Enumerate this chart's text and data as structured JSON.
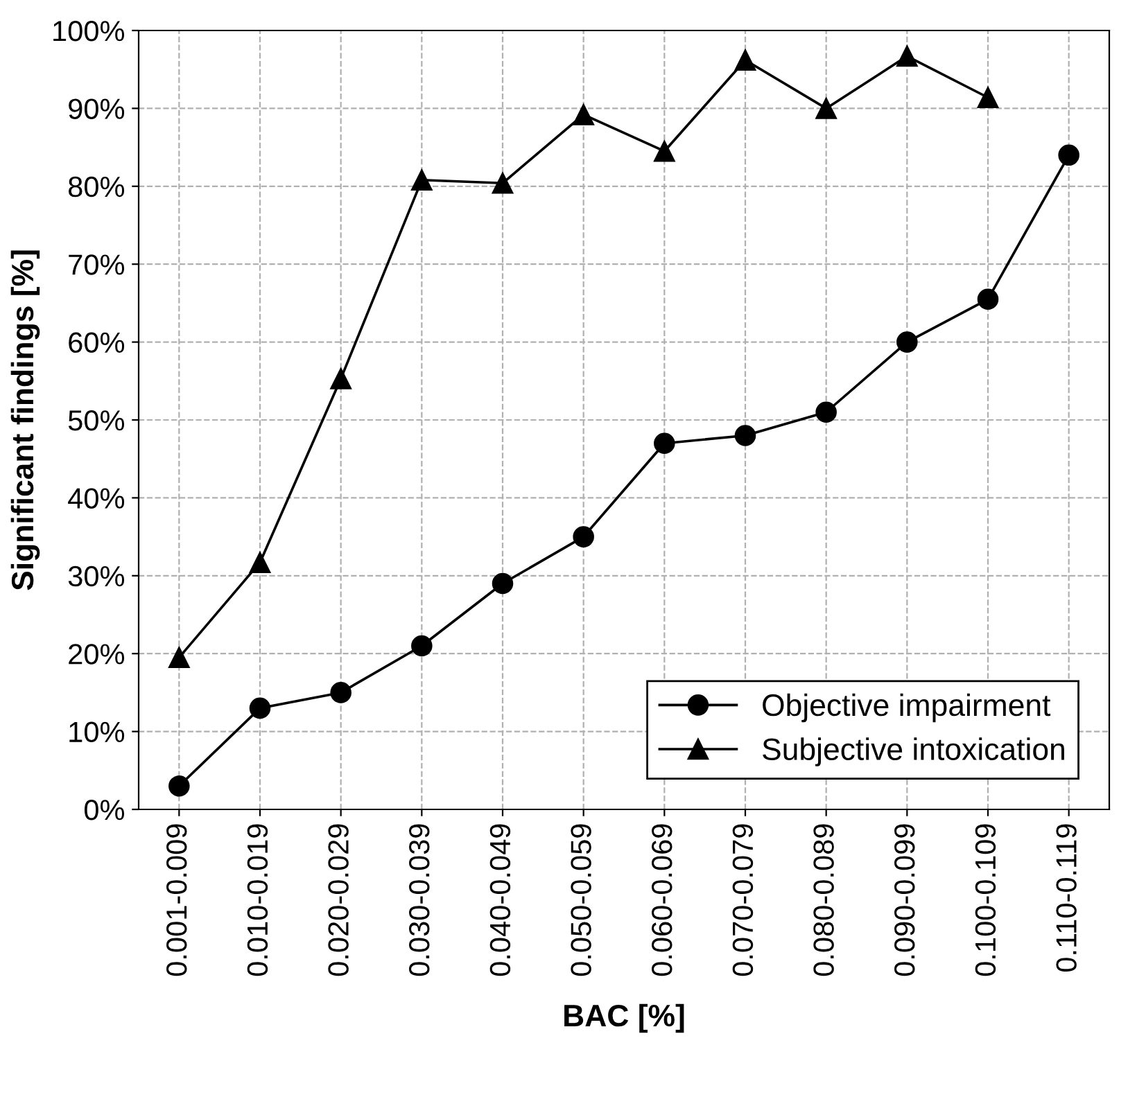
{
  "chart_data": {
    "type": "line",
    "xlabel": "BAC [%]",
    "ylabel": "Significant findings [%]",
    "categories": [
      "0.001-0.009",
      "0.010-0.019",
      "0.020-0.029",
      "0.030-0.039",
      "0.040-0.049",
      "0.050-0.059",
      "0.060-0.069",
      "0.070-0.079",
      "0.080-0.089",
      "0.090-0.099",
      "0.100-0.109",
      "0.110-0.119"
    ],
    "series": [
      {
        "name": "Objective impairment",
        "color": "#000000",
        "marker": "circle",
        "values": [
          3,
          13,
          15,
          21,
          29,
          35,
          47,
          48,
          51,
          60,
          65.5,
          84
        ]
      },
      {
        "name": "Subjective intoxication",
        "color": "#000000",
        "marker": "triangle",
        "values": [
          19.5,
          31.7,
          55.3,
          80.8,
          80.4,
          89.2,
          84.5,
          96.2,
          90,
          96.7,
          91.4,
          null
        ]
      }
    ],
    "ylim": [
      0,
      100
    ],
    "yticks": [
      {
        "value": 0,
        "label": "0%"
      },
      {
        "value": 10,
        "label": "10%"
      },
      {
        "value": 20,
        "label": "20%"
      },
      {
        "value": 30,
        "label": "30%"
      },
      {
        "value": 40,
        "label": "40%"
      },
      {
        "value": 50,
        "label": "50%"
      },
      {
        "value": 60,
        "label": "60%"
      },
      {
        "value": 70,
        "label": "70%"
      },
      {
        "value": 80,
        "label": "80%"
      },
      {
        "value": 90,
        "label": "90%"
      },
      {
        "value": 100,
        "label": "100%"
      }
    ],
    "grid": true,
    "legend": "bottom right",
    "line_style": "solid"
  }
}
